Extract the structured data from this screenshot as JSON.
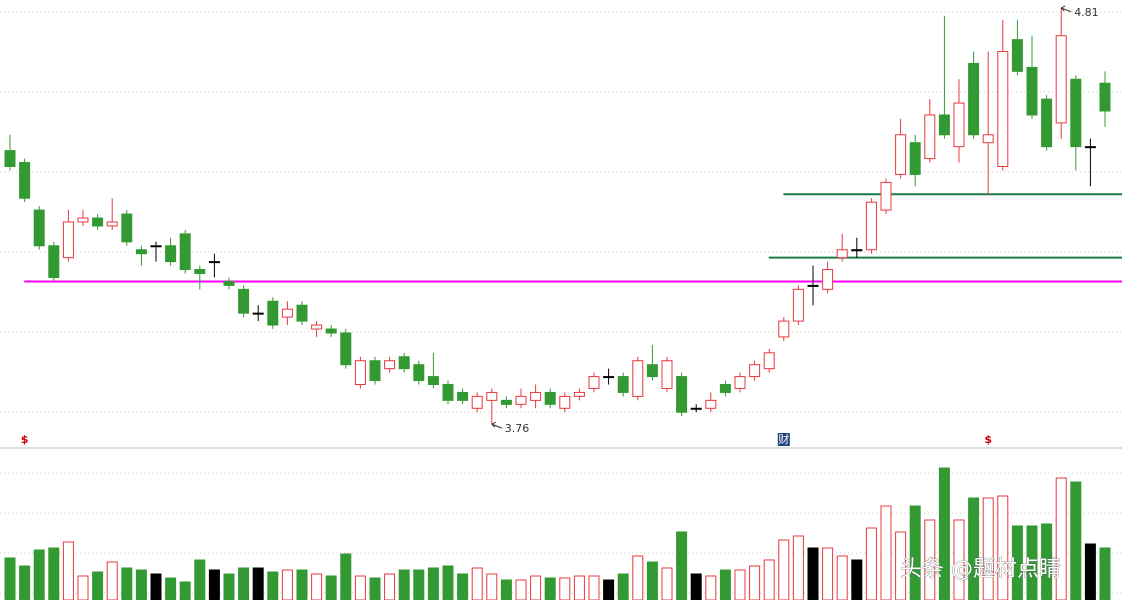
{
  "chart_data": {
    "type": "candlestick",
    "categories": [
      null,
      null,
      null,
      null,
      null,
      null,
      null,
      null,
      null,
      null,
      null,
      null,
      null,
      null,
      null,
      null,
      null,
      null,
      null,
      null,
      null,
      null,
      null,
      null,
      null,
      null,
      null,
      null,
      null,
      null,
      null,
      null,
      null,
      null,
      null,
      null,
      null,
      null,
      null,
      null,
      null,
      null,
      null,
      null,
      null,
      null,
      null,
      null,
      null,
      null,
      null,
      null,
      null,
      null,
      null,
      null,
      null,
      null,
      null,
      null,
      null,
      null,
      null,
      null,
      null,
      null,
      null,
      null,
      null,
      null,
      null,
      null,
      null,
      null,
      null,
      null
    ],
    "open": [
      4.45,
      4.42,
      4.3,
      4.21,
      4.18,
      4.27,
      4.28,
      4.26,
      4.29,
      4.2,
      4.21,
      4.21,
      4.24,
      4.15,
      4.17,
      4.12,
      4.1,
      4.04,
      4.07,
      4.03,
      4.06,
      4.0,
      4.0,
      3.99,
      3.86,
      3.92,
      3.9,
      3.93,
      3.91,
      3.88,
      3.86,
      3.84,
      3.8,
      3.82,
      3.82,
      3.81,
      3.82,
      3.84,
      3.8,
      3.83,
      3.85,
      3.88,
      3.88,
      3.83,
      3.91,
      3.85,
      3.88,
      3.8,
      3.8,
      3.86,
      3.85,
      3.88,
      3.9,
      3.98,
      4.02,
      4.11,
      4.1,
      4.18,
      4.2,
      4.2,
      4.3,
      4.39,
      4.47,
      4.43,
      4.54,
      4.46,
      4.67,
      4.47,
      4.41,
      4.73,
      4.66,
      4.58,
      4.52,
      4.63,
      4.46,
      4.62
    ],
    "high": [
      4.49,
      4.43,
      4.31,
      4.22,
      4.3,
      4.3,
      4.29,
      4.33,
      4.3,
      4.21,
      4.22,
      4.23,
      4.25,
      4.16,
      4.19,
      4.13,
      4.11,
      4.06,
      4.08,
      4.07,
      4.07,
      4.02,
      4.01,
      4.0,
      3.93,
      3.93,
      3.93,
      3.94,
      3.92,
      3.94,
      3.87,
      3.85,
      3.84,
      3.85,
      3.83,
      3.85,
      3.86,
      3.85,
      3.84,
      3.85,
      3.89,
      3.9,
      3.89,
      3.93,
      3.96,
      3.93,
      3.89,
      3.81,
      3.84,
      3.87,
      3.89,
      3.92,
      3.95,
      4.03,
      4.11,
      4.16,
      4.17,
      4.24,
      4.23,
      4.33,
      4.38,
      4.53,
      4.49,
      4.58,
      4.79,
      4.63,
      4.7,
      4.7,
      4.78,
      4.78,
      4.74,
      4.59,
      4.81,
      4.64,
      4.48,
      4.65
    ],
    "low": [
      4.4,
      4.32,
      4.2,
      4.12,
      4.17,
      4.26,
      4.25,
      4.25,
      4.21,
      4.16,
      4.17,
      4.16,
      4.14,
      4.1,
      4.13,
      4.1,
      4.03,
      4.02,
      4.0,
      4.01,
      4.01,
      3.98,
      3.98,
      3.9,
      3.85,
      3.86,
      3.89,
      3.89,
      3.86,
      3.85,
      3.81,
      3.81,
      3.79,
      3.76,
      3.8,
      3.8,
      3.8,
      3.8,
      3.79,
      3.82,
      3.84,
      3.86,
      3.83,
      3.82,
      3.87,
      3.84,
      3.78,
      3.79,
      3.79,
      3.83,
      3.84,
      3.87,
      3.89,
      3.97,
      4.01,
      4.06,
      4.09,
      4.17,
      4.18,
      4.19,
      4.29,
      4.38,
      4.36,
      4.42,
      4.48,
      4.42,
      4.48,
      4.34,
      4.4,
      4.64,
      4.53,
      4.45,
      4.48,
      4.4,
      4.36,
      4.51
    ],
    "close": [
      4.41,
      4.33,
      4.21,
      4.13,
      4.27,
      4.28,
      4.26,
      4.27,
      4.22,
      4.19,
      4.21,
      4.17,
      4.15,
      4.14,
      4.17,
      4.11,
      4.04,
      4.04,
      4.01,
      4.05,
      4.02,
      4.01,
      3.99,
      3.91,
      3.92,
      3.87,
      3.92,
      3.9,
      3.87,
      3.86,
      3.82,
      3.82,
      3.83,
      3.84,
      3.81,
      3.83,
      3.84,
      3.81,
      3.83,
      3.84,
      3.88,
      3.88,
      3.84,
      3.92,
      3.88,
      3.92,
      3.79,
      3.8,
      3.82,
      3.84,
      3.88,
      3.91,
      3.94,
      4.02,
      4.1,
      4.11,
      4.15,
      4.2,
      4.2,
      4.32,
      4.37,
      4.49,
      4.39,
      4.54,
      4.49,
      4.57,
      4.49,
      4.49,
      4.7,
      4.65,
      4.54,
      4.46,
      4.74,
      4.46,
      4.46,
      4.55
    ],
    "volume": [
      42,
      34,
      50,
      52,
      58,
      24,
      28,
      38,
      32,
      30,
      26,
      22,
      18,
      40,
      30,
      26,
      32,
      32,
      28,
      30,
      30,
      26,
      24,
      46,
      24,
      22,
      26,
      30,
      30,
      32,
      34,
      26,
      32,
      26,
      20,
      20,
      24,
      22,
      22,
      24,
      24,
      20,
      26,
      44,
      38,
      32,
      68,
      26,
      24,
      30,
      30,
      34,
      40,
      60,
      64,
      52,
      52,
      44,
      40,
      72,
      94,
      68,
      94,
      80,
      132,
      80,
      102,
      102,
      104,
      74,
      74,
      76,
      122,
      118,
      56,
      52
    ],
    "ylim": [
      3.72,
      4.83
    ],
    "volume_ylim": [
      0,
      150
    ],
    "up_color": "#e8383d",
    "down_color": "#339933",
    "flat_color": "#000000",
    "grid": true,
    "high_label": {
      "value": 4.81,
      "index": 72
    },
    "low_label": {
      "value": 3.76,
      "index": 33
    },
    "lines": [
      {
        "value": 4.12,
        "color": "#ff00ff",
        "from": 2
      },
      {
        "value": 4.18,
        "color": "#1a7a4a",
        "from": 53
      },
      {
        "value": 4.34,
        "color": "#1a7a4a",
        "from": 54
      }
    ],
    "markers": [
      {
        "text": "$",
        "index": 1,
        "color": "#cc0000"
      },
      {
        "text": "财",
        "index": 53,
        "color": "#1f3f7a"
      },
      {
        "text": "$",
        "index": 67,
        "color": "#cc0000"
      }
    ],
    "watermark": "头条 @题材点睛"
  }
}
